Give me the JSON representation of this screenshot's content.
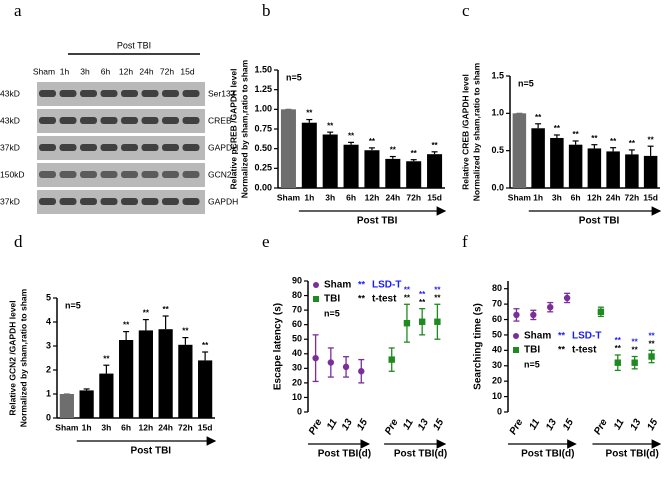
{
  "blot": {
    "panel": "a",
    "group_label": "Post TBI",
    "lanes": [
      "Sham",
      "1h",
      "3h",
      "6h",
      "12h",
      "24h",
      "72h",
      "15d"
    ],
    "sizes": [
      "43kD",
      "43kD",
      "37kD",
      "150kD",
      "37kD"
    ],
    "proteins": [
      "Ser133",
      "CREB",
      "GAPDH",
      "GCN2",
      "GAPDH"
    ]
  },
  "chart_data": [
    {
      "type": "bar",
      "panel": "b",
      "ylabel": [
        "Relative pCREB /GAPDH level",
        "Normalized by sham,ratio to sham"
      ],
      "note": "n=5",
      "xlabel": "Post TBI",
      "categories": [
        "Sham",
        "1h",
        "3h",
        "6h",
        "12h",
        "24h",
        "72h",
        "15d"
      ],
      "values": [
        1.0,
        0.83,
        0.68,
        0.55,
        0.48,
        0.37,
        0.34,
        0.43
      ],
      "errors": [
        0,
        0.04,
        0.03,
        0.03,
        0.03,
        0.03,
        0.02,
        0.03
      ],
      "significance": [
        null,
        "**",
        "**",
        "**",
        "**",
        "**",
        "**",
        "**"
      ],
      "colors": [
        "#6e6e6e",
        "#000000",
        "#000000",
        "#000000",
        "#000000",
        "#000000",
        "#000000",
        "#000000"
      ],
      "ylim": [
        0,
        1.5
      ],
      "yticks": [
        {
          "value": 0,
          "label": "0.00"
        },
        0.25,
        {
          "value": 0.5,
          "label": "0.50"
        },
        0.75,
        {
          "value": 1,
          "label": "1.00"
        },
        1.25,
        {
          "value": 1.5,
          "label": "1.50"
        }
      ]
    },
    {
      "type": "bar",
      "panel": "c",
      "ylabel": [
        "Relative CREB /GAPDH level",
        "Normalized by sham,ratio to sham"
      ],
      "note": "n=5",
      "xlabel": "Post TBI",
      "categories": [
        "Sham",
        "1h",
        "3h",
        "6h",
        "12h",
        "24h",
        "72h",
        "15d"
      ],
      "values": [
        1.0,
        0.8,
        0.67,
        0.58,
        0.53,
        0.49,
        0.45,
        0.43
      ],
      "errors": [
        0,
        0.06,
        0.04,
        0.05,
        0.05,
        0.05,
        0.06,
        0.13
      ],
      "significance": [
        null,
        "**",
        "**",
        "**",
        "**",
        "**",
        "**",
        "**"
      ],
      "colors": [
        "#6e6e6e",
        "#000000",
        "#000000",
        "#000000",
        "#000000",
        "#000000",
        "#000000",
        "#000000"
      ],
      "ylim": [
        0,
        1.5
      ],
      "yticks": [
        {
          "value": 0,
          "label": "0.0"
        },
        0.5,
        {
          "value": 1,
          "label": "1.0"
        },
        1.5
      ]
    },
    {
      "type": "bar",
      "panel": "d",
      "ylabel": [
        "Relative GCN2 /GAPDH level",
        "Normalized by sham,ratio to sham"
      ],
      "note": "n=5",
      "xlabel": "Post TBI",
      "categories": [
        "Sham",
        "1h",
        "3h",
        "6h",
        "12h",
        "24h",
        "72h",
        "15d"
      ],
      "values": [
        1.0,
        1.15,
        1.85,
        3.25,
        3.65,
        3.7,
        3.05,
        2.4
      ],
      "errors": [
        0,
        0.06,
        0.35,
        0.35,
        0.45,
        0.55,
        0.3,
        0.35
      ],
      "significance": [
        null,
        null,
        "**",
        "**",
        "**",
        "**",
        "**",
        "**"
      ],
      "colors": [
        "#6e6e6e",
        "#000000",
        "#000000",
        "#000000",
        "#000000",
        "#000000",
        "#000000",
        "#000000"
      ],
      "ylim": [
        0,
        5
      ],
      "yticks": [
        0,
        1,
        2,
        3,
        4,
        5
      ]
    },
    {
      "type": "scatter",
      "panel": "e",
      "ylabel": "Escape latency (s)",
      "note": "n=5",
      "categories": [
        "Pre",
        "11",
        "13",
        "15",
        null,
        "Pre",
        "11",
        "13",
        "15"
      ],
      "xlabels": [
        "Post  TBI(d)",
        "Post  TBI(d)"
      ],
      "series": [
        {
          "name": "Sham",
          "marker": "circle",
          "color": "#7b2d9a",
          "values": [
            37,
            34,
            31,
            28,
            null,
            null,
            null,
            null,
            null
          ],
          "errors": [
            16,
            10,
            7,
            8,
            null,
            null,
            null,
            null,
            null
          ]
        },
        {
          "name": "TBI",
          "marker": "square",
          "color": "#1f8a1f",
          "values": [
            null,
            null,
            null,
            null,
            null,
            36,
            61,
            62,
            62
          ],
          "errors": [
            null,
            null,
            null,
            null,
            null,
            8,
            13,
            9,
            12
          ]
        }
      ],
      "significance_lsd": [
        null,
        null,
        null,
        null,
        null,
        null,
        "**",
        "**",
        "**"
      ],
      "significance_t": [
        null,
        null,
        null,
        null,
        null,
        null,
        "**",
        "**",
        "**"
      ],
      "legend_marks": [
        {
          "mark": "**",
          "label": "LSD-T",
          "color": "#1a1aff"
        },
        {
          "mark": "**",
          "label": "t-test",
          "color": "#000000"
        }
      ],
      "ylim": [
        0,
        90
      ],
      "yticks": [
        0,
        10,
        20,
        30,
        40,
        50,
        60,
        70,
        80,
        90
      ]
    },
    {
      "type": "scatter",
      "panel": "f",
      "ylabel": "Searching time (s)",
      "note": "n=5",
      "categories": [
        "Pre",
        "11",
        "13",
        "15",
        null,
        "Pre",
        "11",
        "13",
        "15"
      ],
      "xlabels": [
        "Post TBI(d)",
        "Post  TBI(d)"
      ],
      "series": [
        {
          "name": "Sham",
          "marker": "circle",
          "color": "#7b2d9a",
          "values": [
            63,
            63,
            68,
            74,
            null,
            null,
            null,
            null,
            null
          ],
          "errors": [
            4,
            3,
            3,
            3,
            null,
            null,
            null,
            null,
            null
          ]
        },
        {
          "name": "TBI",
          "marker": "square",
          "color": "#1f8a1f",
          "values": [
            null,
            null,
            null,
            null,
            null,
            65,
            32,
            32,
            36
          ],
          "errors": [
            null,
            null,
            null,
            null,
            null,
            3,
            5,
            4,
            4
          ]
        }
      ],
      "significance_lsd": [
        null,
        null,
        null,
        null,
        null,
        null,
        "**",
        "**",
        "**"
      ],
      "significance_t": [
        null,
        null,
        null,
        null,
        null,
        null,
        "**",
        "**",
        "**"
      ],
      "legend_marks": [
        {
          "mark": "**",
          "label": "LSD-T",
          "color": "#1a1aff"
        },
        {
          "mark": "**",
          "label": "t-test",
          "color": "#000000"
        }
      ],
      "ylim": [
        0,
        85
      ],
      "yticks": [
        0,
        10,
        20,
        30,
        40,
        50,
        60,
        70,
        80
      ]
    }
  ]
}
